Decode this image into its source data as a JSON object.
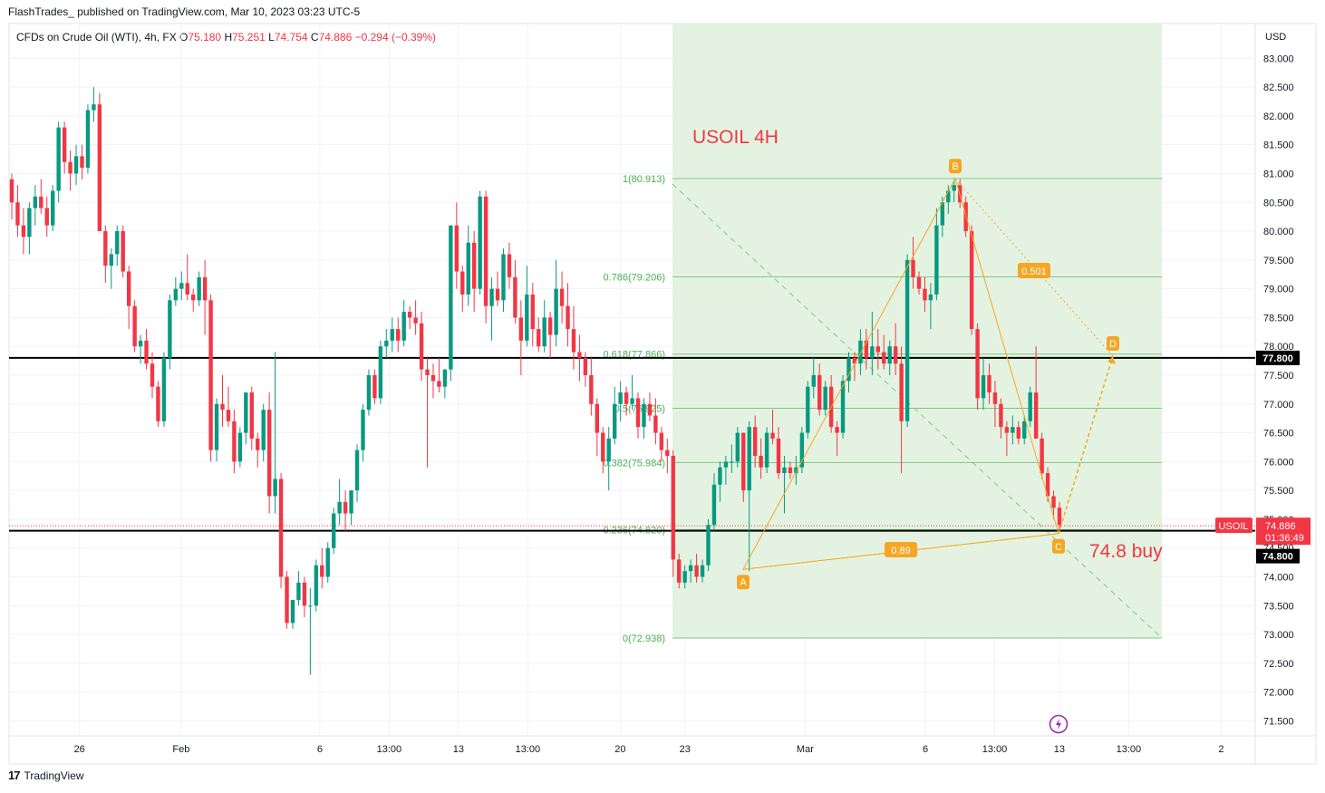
{
  "header": {
    "credit": "FlashTrades_ published on TradingView.com, Mar 10, 2023 03:23 UTC-5",
    "symbol": "CFDs on Crude Oil (WTI), 4h, FX",
    "o_key": "O",
    "o_val": "75.180",
    "h_key": "H",
    "h_val": "75.251",
    "l_key": "L",
    "l_val": "74.754",
    "c_key": "C",
    "c_val": "74.886",
    "change": "−0.294 (−0.39%)"
  },
  "footer": {
    "brand": "TradingView",
    "brand_mark": "17"
  },
  "colors": {
    "up": "#089981",
    "down": "#f23645",
    "grid": "#f0f3fa",
    "zone": "#e4f3e1",
    "fib_line": "#81c784",
    "fib_text": "#4caf50",
    "pattern": "#f5a623",
    "annotation": "#f23645",
    "hline": "#000000"
  },
  "annotations": {
    "title": "USOIL 4H",
    "trade": "74.8 buy"
  },
  "badges": {
    "symbol": "USOIL",
    "price": "74.886",
    "countdown": "01:36:49",
    "line_upper": "77.800",
    "line_lower": "74.800"
  },
  "pattern_points": [
    {
      "name": "A",
      "x": "Feb 24 00:00",
      "y": 74.13
    },
    {
      "name": "B",
      "x": "Mar 7 08:00",
      "y": 80.91
    },
    {
      "name": "C",
      "x": "Mar 9 20:00",
      "y": 74.75
    },
    {
      "name": "D",
      "x": "Mar 14 00:00",
      "y": 77.83
    }
  ],
  "pattern_ratios": [
    {
      "label": "0.501"
    },
    {
      "label": "0.89"
    }
  ],
  "chart_data": {
    "type": "candlestick",
    "title": "",
    "currency": "USD",
    "ylim": [
      71.0,
      83.5
    ],
    "y_ticks": [
      "71.500",
      "72.000",
      "72.500",
      "73.000",
      "73.500",
      "74.000",
      "74.500",
      "75.000",
      "75.500",
      "76.000",
      "76.500",
      "77.000",
      "77.500",
      "78.000",
      "78.500",
      "79.000",
      "79.500",
      "80.000",
      "80.500",
      "81.000",
      "81.500",
      "82.000",
      "82.500",
      "83.000"
    ],
    "x_ticks": [
      "26",
      "Feb",
      "6",
      "13:00",
      "13",
      "13:00",
      "20",
      "23",
      "Mar",
      "6",
      "13:00",
      "13",
      "13:00",
      "2"
    ],
    "x_tick_offsets": [
      7,
      29,
      59,
      74,
      89,
      104,
      124,
      138,
      164,
      190,
      205,
      219,
      234,
      254
    ],
    "fib_levels": [
      {
        "label": "1(80.913)",
        "value": 80.913
      },
      {
        "label": "0.786(79.206)",
        "value": 79.206
      },
      {
        "label": "0.618(77.866)",
        "value": 77.866
      },
      {
        "label": "0.5(76.925)",
        "value": 76.925
      },
      {
        "label": "0.382(75.984)",
        "value": 75.984
      },
      {
        "label": "0.236(74.820)",
        "value": 74.82
      },
      {
        "label": "0(72.938)",
        "value": 72.938
      }
    ],
    "horizontal_lines": [
      77.8,
      74.8
    ],
    "candles_ohlc": [
      [
        80.9,
        81.0,
        80.2,
        80.5
      ],
      [
        80.5,
        80.8,
        79.9,
        80.1
      ],
      [
        80.1,
        80.4,
        79.6,
        79.9
      ],
      [
        79.9,
        80.5,
        79.6,
        80.4
      ],
      [
        80.4,
        80.8,
        80.1,
        80.6
      ],
      [
        80.6,
        80.9,
        80.3,
        80.4
      ],
      [
        80.4,
        80.6,
        79.9,
        80.1
      ],
      [
        80.1,
        80.8,
        80.0,
        80.7
      ],
      [
        80.7,
        81.9,
        80.5,
        81.8
      ],
      [
        81.8,
        81.9,
        81.0,
        81.2
      ],
      [
        81.2,
        81.4,
        80.7,
        81.0
      ],
      [
        81.0,
        81.5,
        80.8,
        81.3
      ],
      [
        81.3,
        81.5,
        80.9,
        81.1
      ],
      [
        81.1,
        82.2,
        81.0,
        82.1
      ],
      [
        82.1,
        82.5,
        81.9,
        82.2
      ],
      [
        82.2,
        82.4,
        80.0,
        80.0
      ],
      [
        80.0,
        80.1,
        79.1,
        79.4
      ],
      [
        79.4,
        79.7,
        79.0,
        79.6
      ],
      [
        79.6,
        80.1,
        79.4,
        80.0
      ],
      [
        80.0,
        80.1,
        79.2,
        79.3
      ],
      [
        79.3,
        79.4,
        78.3,
        78.7
      ],
      [
        78.7,
        78.8,
        77.9,
        78.0
      ],
      [
        78.0,
        78.2,
        77.7,
        78.1
      ],
      [
        78.1,
        78.3,
        77.6,
        77.7
      ],
      [
        77.7,
        77.9,
        77.1,
        77.3
      ],
      [
        77.3,
        77.4,
        76.6,
        76.7
      ],
      [
        76.7,
        77.9,
        76.6,
        77.8
      ],
      [
        77.8,
        78.9,
        77.6,
        78.8
      ],
      [
        78.8,
        79.2,
        78.7,
        79.0
      ],
      [
        79.0,
        79.3,
        78.8,
        79.1
      ],
      [
        79.1,
        79.6,
        78.8,
        78.9
      ],
      [
        78.9,
        79.0,
        78.6,
        78.8
      ],
      [
        78.8,
        79.3,
        78.7,
        79.2
      ],
      [
        79.2,
        79.5,
        78.2,
        78.8
      ],
      [
        78.8,
        78.9,
        76.0,
        76.2
      ],
      [
        76.2,
        77.1,
        76.0,
        77.0
      ],
      [
        77.0,
        77.5,
        76.6,
        76.9
      ],
      [
        76.9,
        77.3,
        76.6,
        76.7
      ],
      [
        76.7,
        76.9,
        75.8,
        76.0
      ],
      [
        76.0,
        76.6,
        75.9,
        76.5
      ],
      [
        76.5,
        77.2,
        76.3,
        77.2
      ],
      [
        77.2,
        77.3,
        76.2,
        76.4
      ],
      [
        76.4,
        76.5,
        75.9,
        76.2
      ],
      [
        76.2,
        77.0,
        76.0,
        76.9
      ],
      [
        76.9,
        77.2,
        75.1,
        75.4
      ],
      [
        75.4,
        77.9,
        75.1,
        75.7
      ],
      [
        75.7,
        75.8,
        73.8,
        74.0
      ],
      [
        74.0,
        74.1,
        73.1,
        73.2
      ],
      [
        73.2,
        73.6,
        73.1,
        73.6
      ],
      [
        73.6,
        74.1,
        73.5,
        73.9
      ],
      [
        73.9,
        74.0,
        73.3,
        73.5
      ],
      [
        73.5,
        73.8,
        72.3,
        73.5
      ],
      [
        73.5,
        74.3,
        73.4,
        74.2
      ],
      [
        74.2,
        74.5,
        73.8,
        74.0
      ],
      [
        74.0,
        74.6,
        73.9,
        74.5
      ],
      [
        74.5,
        75.2,
        74.4,
        75.1
      ],
      [
        75.1,
        75.7,
        74.9,
        75.3
      ],
      [
        75.3,
        75.5,
        74.8,
        75.1
      ],
      [
        75.1,
        75.5,
        74.9,
        75.5
      ],
      [
        75.5,
        76.3,
        75.3,
        76.2
      ],
      [
        76.2,
        77.0,
        76.0,
        76.9
      ],
      [
        76.9,
        77.6,
        76.8,
        77.5
      ],
      [
        77.5,
        77.6,
        77.0,
        77.1
      ],
      [
        77.1,
        78.1,
        77.0,
        78.0
      ],
      [
        78.0,
        78.3,
        77.8,
        78.1
      ],
      [
        78.1,
        78.5,
        77.9,
        78.3
      ],
      [
        78.3,
        78.5,
        77.9,
        78.1
      ],
      [
        78.1,
        78.8,
        78.0,
        78.6
      ],
      [
        78.6,
        78.7,
        78.3,
        78.5
      ],
      [
        78.5,
        78.8,
        78.2,
        78.4
      ],
      [
        78.4,
        78.6,
        77.4,
        77.6
      ],
      [
        77.6,
        77.8,
        75.9,
        77.5
      ],
      [
        77.5,
        77.7,
        77.1,
        77.4
      ],
      [
        77.4,
        77.8,
        77.2,
        77.3
      ],
      [
        77.3,
        77.6,
        77.1,
        77.6
      ],
      [
        77.6,
        80.1,
        77.4,
        80.1
      ],
      [
        80.1,
        80.5,
        79.0,
        79.3
      ],
      [
        79.3,
        79.4,
        78.6,
        78.9
      ],
      [
        78.9,
        80.1,
        78.7,
        79.8
      ],
      [
        79.8,
        80.0,
        78.6,
        79.0
      ],
      [
        79.0,
        80.7,
        78.9,
        80.6
      ],
      [
        80.6,
        80.7,
        78.4,
        78.7
      ],
      [
        78.7,
        79.2,
        78.1,
        79.0
      ],
      [
        79.0,
        79.3,
        78.7,
        78.8
      ],
      [
        78.8,
        79.7,
        78.6,
        79.6
      ],
      [
        79.6,
        79.8,
        79.0,
        79.2
      ],
      [
        79.2,
        79.5,
        78.4,
        78.5
      ],
      [
        78.5,
        78.8,
        77.5,
        78.1
      ],
      [
        78.1,
        79.4,
        78.0,
        78.9
      ],
      [
        78.9,
        79.1,
        78.0,
        78.3
      ],
      [
        78.3,
        78.5,
        77.9,
        78.0
      ],
      [
        78.0,
        78.8,
        77.9,
        78.5
      ],
      [
        78.5,
        78.6,
        77.8,
        78.2
      ],
      [
        78.2,
        79.5,
        78.0,
        79.0
      ],
      [
        79.0,
        79.3,
        78.4,
        78.7
      ],
      [
        78.7,
        79.1,
        78.0,
        78.3
      ],
      [
        78.3,
        78.7,
        77.6,
        77.9
      ],
      [
        77.9,
        78.2,
        77.4,
        77.8
      ],
      [
        77.8,
        77.9,
        77.3,
        77.5
      ],
      [
        77.5,
        77.8,
        76.8,
        77.0
      ],
      [
        77.0,
        77.1,
        76.1,
        76.5
      ],
      [
        76.5,
        76.6,
        75.8,
        76.0
      ],
      [
        76.0,
        76.6,
        75.5,
        76.4
      ],
      [
        76.4,
        77.3,
        76.3,
        77.0
      ],
      [
        77.0,
        77.4,
        76.7,
        77.2
      ],
      [
        77.2,
        77.3,
        76.8,
        77.0
      ],
      [
        77.0,
        77.5,
        76.9,
        77.1
      ],
      [
        77.1,
        77.2,
        76.4,
        76.6
      ],
      [
        76.6,
        77.1,
        76.4,
        77.0
      ],
      [
        77.0,
        77.2,
        76.7,
        76.8
      ],
      [
        76.8,
        77.1,
        76.3,
        76.5
      ],
      [
        76.5,
        76.6,
        76.0,
        76.2
      ],
      [
        76.2,
        76.4,
        75.8,
        76.1
      ],
      [
        76.1,
        76.2,
        74.0,
        74.3
      ],
      [
        74.3,
        74.4,
        73.8,
        73.9
      ],
      [
        73.9,
        74.2,
        73.8,
        74.1
      ],
      [
        74.1,
        74.3,
        73.9,
        74.2
      ],
      [
        74.2,
        74.4,
        73.9,
        74.0
      ],
      [
        74.0,
        74.3,
        73.9,
        74.2
      ],
      [
        74.2,
        75.0,
        74.1,
        74.9
      ],
      [
        74.9,
        75.8,
        74.8,
        75.6
      ],
      [
        75.6,
        76.0,
        75.3,
        75.9
      ],
      [
        75.9,
        76.1,
        75.6,
        76.0
      ],
      [
        76.0,
        76.3,
        75.8,
        76.0
      ],
      [
        76.0,
        76.6,
        75.9,
        76.5
      ],
      [
        76.5,
        76.5,
        75.3,
        75.5
      ],
      [
        75.5,
        76.7,
        74.1,
        76.6
      ],
      [
        76.6,
        76.8,
        75.9,
        76.1
      ],
      [
        76.1,
        76.4,
        75.7,
        75.9
      ],
      [
        75.9,
        76.6,
        75.8,
        76.5
      ],
      [
        76.5,
        76.9,
        76.3,
        76.4
      ],
      [
        76.4,
        76.6,
        75.7,
        75.8
      ],
      [
        75.8,
        76.1,
        75.1,
        75.9
      ],
      [
        75.9,
        76.0,
        75.7,
        75.8
      ],
      [
        75.8,
        76.1,
        75.6,
        75.9
      ],
      [
        75.9,
        76.6,
        75.8,
        76.5
      ],
      [
        76.5,
        77.4,
        76.4,
        77.3
      ],
      [
        77.3,
        77.8,
        77.1,
        77.5
      ],
      [
        77.5,
        77.7,
        76.8,
        76.9
      ],
      [
        76.9,
        77.4,
        76.8,
        77.3
      ],
      [
        77.3,
        77.5,
        76.5,
        76.6
      ],
      [
        76.6,
        76.7,
        76.1,
        76.5
      ],
      [
        76.5,
        77.5,
        76.4,
        77.4
      ],
      [
        77.4,
        77.9,
        77.2,
        77.8
      ],
      [
        77.8,
        77.9,
        77.4,
        77.7
      ],
      [
        77.7,
        78.3,
        77.5,
        78.1
      ],
      [
        78.1,
        78.3,
        77.6,
        77.8
      ],
      [
        77.8,
        78.6,
        77.5,
        78.0
      ],
      [
        78.0,
        78.3,
        77.6,
        77.9
      ],
      [
        77.9,
        78.2,
        77.6,
        77.7
      ],
      [
        77.7,
        78.1,
        77.5,
        78.0
      ],
      [
        78.0,
        78.4,
        77.5,
        77.7
      ],
      [
        77.7,
        78.0,
        75.8,
        76.7
      ],
      [
        76.7,
        79.6,
        76.6,
        79.5
      ],
      [
        79.5,
        79.9,
        79.0,
        79.2
      ],
      [
        79.2,
        79.3,
        78.9,
        79.0
      ],
      [
        79.0,
        79.2,
        78.6,
        78.8
      ],
      [
        78.8,
        79.1,
        78.3,
        78.9
      ],
      [
        78.9,
        80.4,
        78.8,
        80.1
      ],
      [
        80.1,
        80.6,
        79.9,
        80.5
      ],
      [
        80.5,
        80.8,
        80.3,
        80.7
      ],
      [
        80.7,
        80.9,
        80.5,
        80.8
      ],
      [
        80.8,
        80.9,
        80.4,
        80.5
      ],
      [
        80.5,
        80.6,
        79.9,
        80.0
      ],
      [
        80.0,
        80.1,
        78.2,
        78.3
      ],
      [
        78.3,
        78.4,
        76.9,
        77.1
      ],
      [
        77.1,
        77.8,
        76.9,
        77.5
      ],
      [
        77.5,
        77.7,
        77.0,
        77.2
      ],
      [
        77.2,
        77.4,
        76.6,
        77.0
      ],
      [
        77.0,
        77.1,
        76.4,
        76.6
      ],
      [
        76.6,
        76.7,
        76.1,
        76.5
      ],
      [
        76.5,
        76.8,
        76.3,
        76.6
      ],
      [
        76.6,
        76.7,
        76.3,
        76.4
      ],
      [
        76.4,
        76.8,
        76.3,
        76.7
      ],
      [
        76.7,
        77.3,
        76.6,
        77.2
      ],
      [
        77.2,
        78.0,
        76.4,
        76.4
      ],
      [
        76.4,
        76.5,
        75.7,
        75.8
      ],
      [
        75.8,
        75.9,
        75.3,
        75.4
      ],
      [
        75.4,
        75.5,
        75.0,
        75.2
      ],
      [
        75.2,
        75.3,
        74.8,
        74.9
      ]
    ]
  }
}
